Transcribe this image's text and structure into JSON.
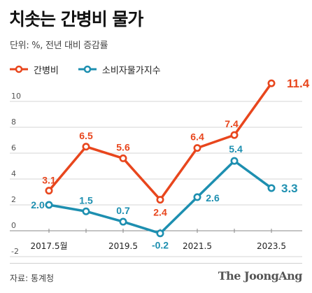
{
  "header": {
    "title": "치솟는 간병비 물가",
    "subtitle": "단위: %, 전년 대비 증감률"
  },
  "footer": {
    "source": "자료: 통계청",
    "brand": "The JoongAng"
  },
  "colors": {
    "orange": "#e8461d",
    "blue": "#1d8fb0",
    "grid": "#d6d6d6",
    "zero": "#888888"
  },
  "chart_data": {
    "type": "line",
    "title": "치솟는 간병비 물가",
    "subtitle": "단위: %, 전년 대비 증감률",
    "x": [
      "2017.5",
      "2018.5",
      "2019.5",
      "2020.5",
      "2021.5",
      "2022.5",
      "2023.5"
    ],
    "x_tick_labels": [
      "2017.5월",
      "",
      "2019.5",
      "",
      "2021.5",
      "",
      "2023.5"
    ],
    "ylim": [
      -2,
      12
    ],
    "y_ticks": [
      -2,
      0,
      2,
      4,
      6,
      8,
      10
    ],
    "grid": true,
    "legend_position": "top-left",
    "series": [
      {
        "name": "간병비",
        "color": "#e8461d",
        "values": [
          3.1,
          6.5,
          5.6,
          2.4,
          6.4,
          7.4,
          11.4
        ],
        "labels": [
          "3.1",
          "6.5",
          "5.6",
          "2.4",
          "6.4",
          "7.4",
          "11.4"
        ]
      },
      {
        "name": "소비자물가지수",
        "color": "#1d8fb0",
        "values": [
          2.0,
          1.5,
          0.7,
          -0.2,
          2.6,
          5.4,
          3.3
        ],
        "labels": [
          "2.0",
          "1.5",
          "0.7",
          "-0.2",
          "2.6",
          "5.4",
          "3.3"
        ]
      }
    ]
  }
}
